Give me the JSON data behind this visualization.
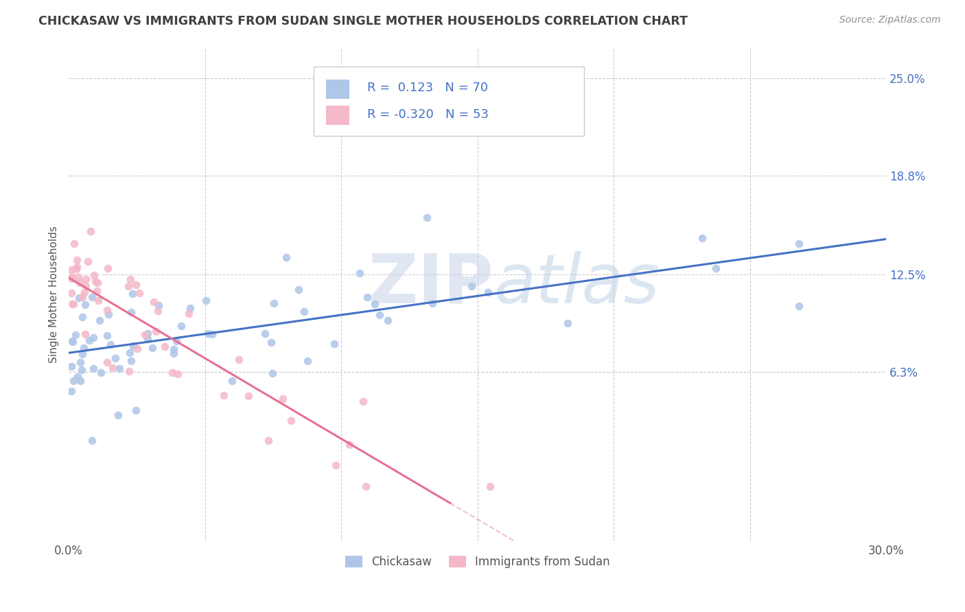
{
  "title": "CHICKASAW VS IMMIGRANTS FROM SUDAN SINGLE MOTHER HOUSEHOLDS CORRELATION CHART",
  "source": "Source: ZipAtlas.com",
  "ylabel": "Single Mother Households",
  "xlim": [
    0.0,
    0.3
  ],
  "ylim": [
    -0.045,
    0.27
  ],
  "ytick_positions": [
    0.063,
    0.125,
    0.188,
    0.25
  ],
  "ytick_labels": [
    "6.3%",
    "12.5%",
    "18.8%",
    "25.0%"
  ],
  "r1": 0.123,
  "n1": 70,
  "r2": -0.32,
  "n2": 53,
  "color_chickasaw": "#aec6e8",
  "color_sudan": "#f4b8c8",
  "color_line1": "#4472c4",
  "color_line2": "#e87090",
  "legend_label1": "Chickasaw",
  "legend_label2": "Immigrants from Sudan",
  "watermark_zip": "ZIP",
  "watermark_atlas": "atlas",
  "background_color": "#ffffff",
  "grid_color": "#cccccc",
  "title_color": "#404040",
  "source_color": "#909090",
  "axis_color": "#555555",
  "ytick_color": "#4472c4"
}
